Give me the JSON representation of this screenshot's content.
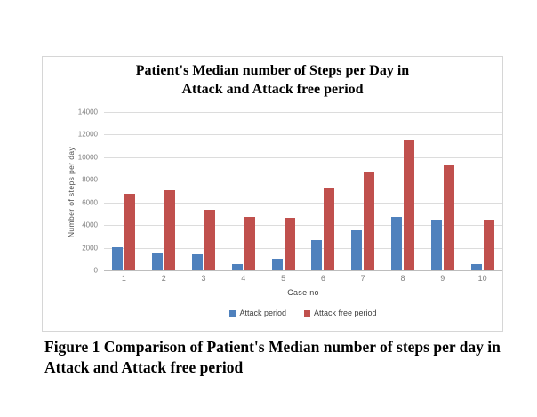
{
  "page": {
    "caption": "Figure 1 Comparison of Patient's Median number of steps per day in Attack and Attack free period"
  },
  "chart_data": {
    "type": "bar",
    "title_line1": "Patient's Median number of Steps per Day in",
    "title_line2": "Attack and Attack free period",
    "xlabel": "Case no",
    "ylabel": "Number of steps per day",
    "categories": [
      "1",
      "2",
      "3",
      "4",
      "5",
      "6",
      "7",
      "8",
      "9",
      "10"
    ],
    "series": [
      {
        "name": "Attack period",
        "color": "#4F81BD",
        "values": [
          2050,
          1500,
          1400,
          550,
          1000,
          2650,
          3550,
          4750,
          4450,
          550
        ]
      },
      {
        "name": "Attack free period",
        "color": "#C0504D",
        "values": [
          6800,
          7100,
          5350,
          4700,
          4650,
          7300,
          8700,
          11500,
          9250,
          4500
        ]
      }
    ],
    "ylim": [
      0,
      14000
    ],
    "ytick_step": 2000,
    "grid": true,
    "legend_position": "bottom"
  },
  "colors": {
    "gridline": "#dcdcdc",
    "axis_text": "#7f7f7f",
    "border": "#d6d6d6"
  }
}
